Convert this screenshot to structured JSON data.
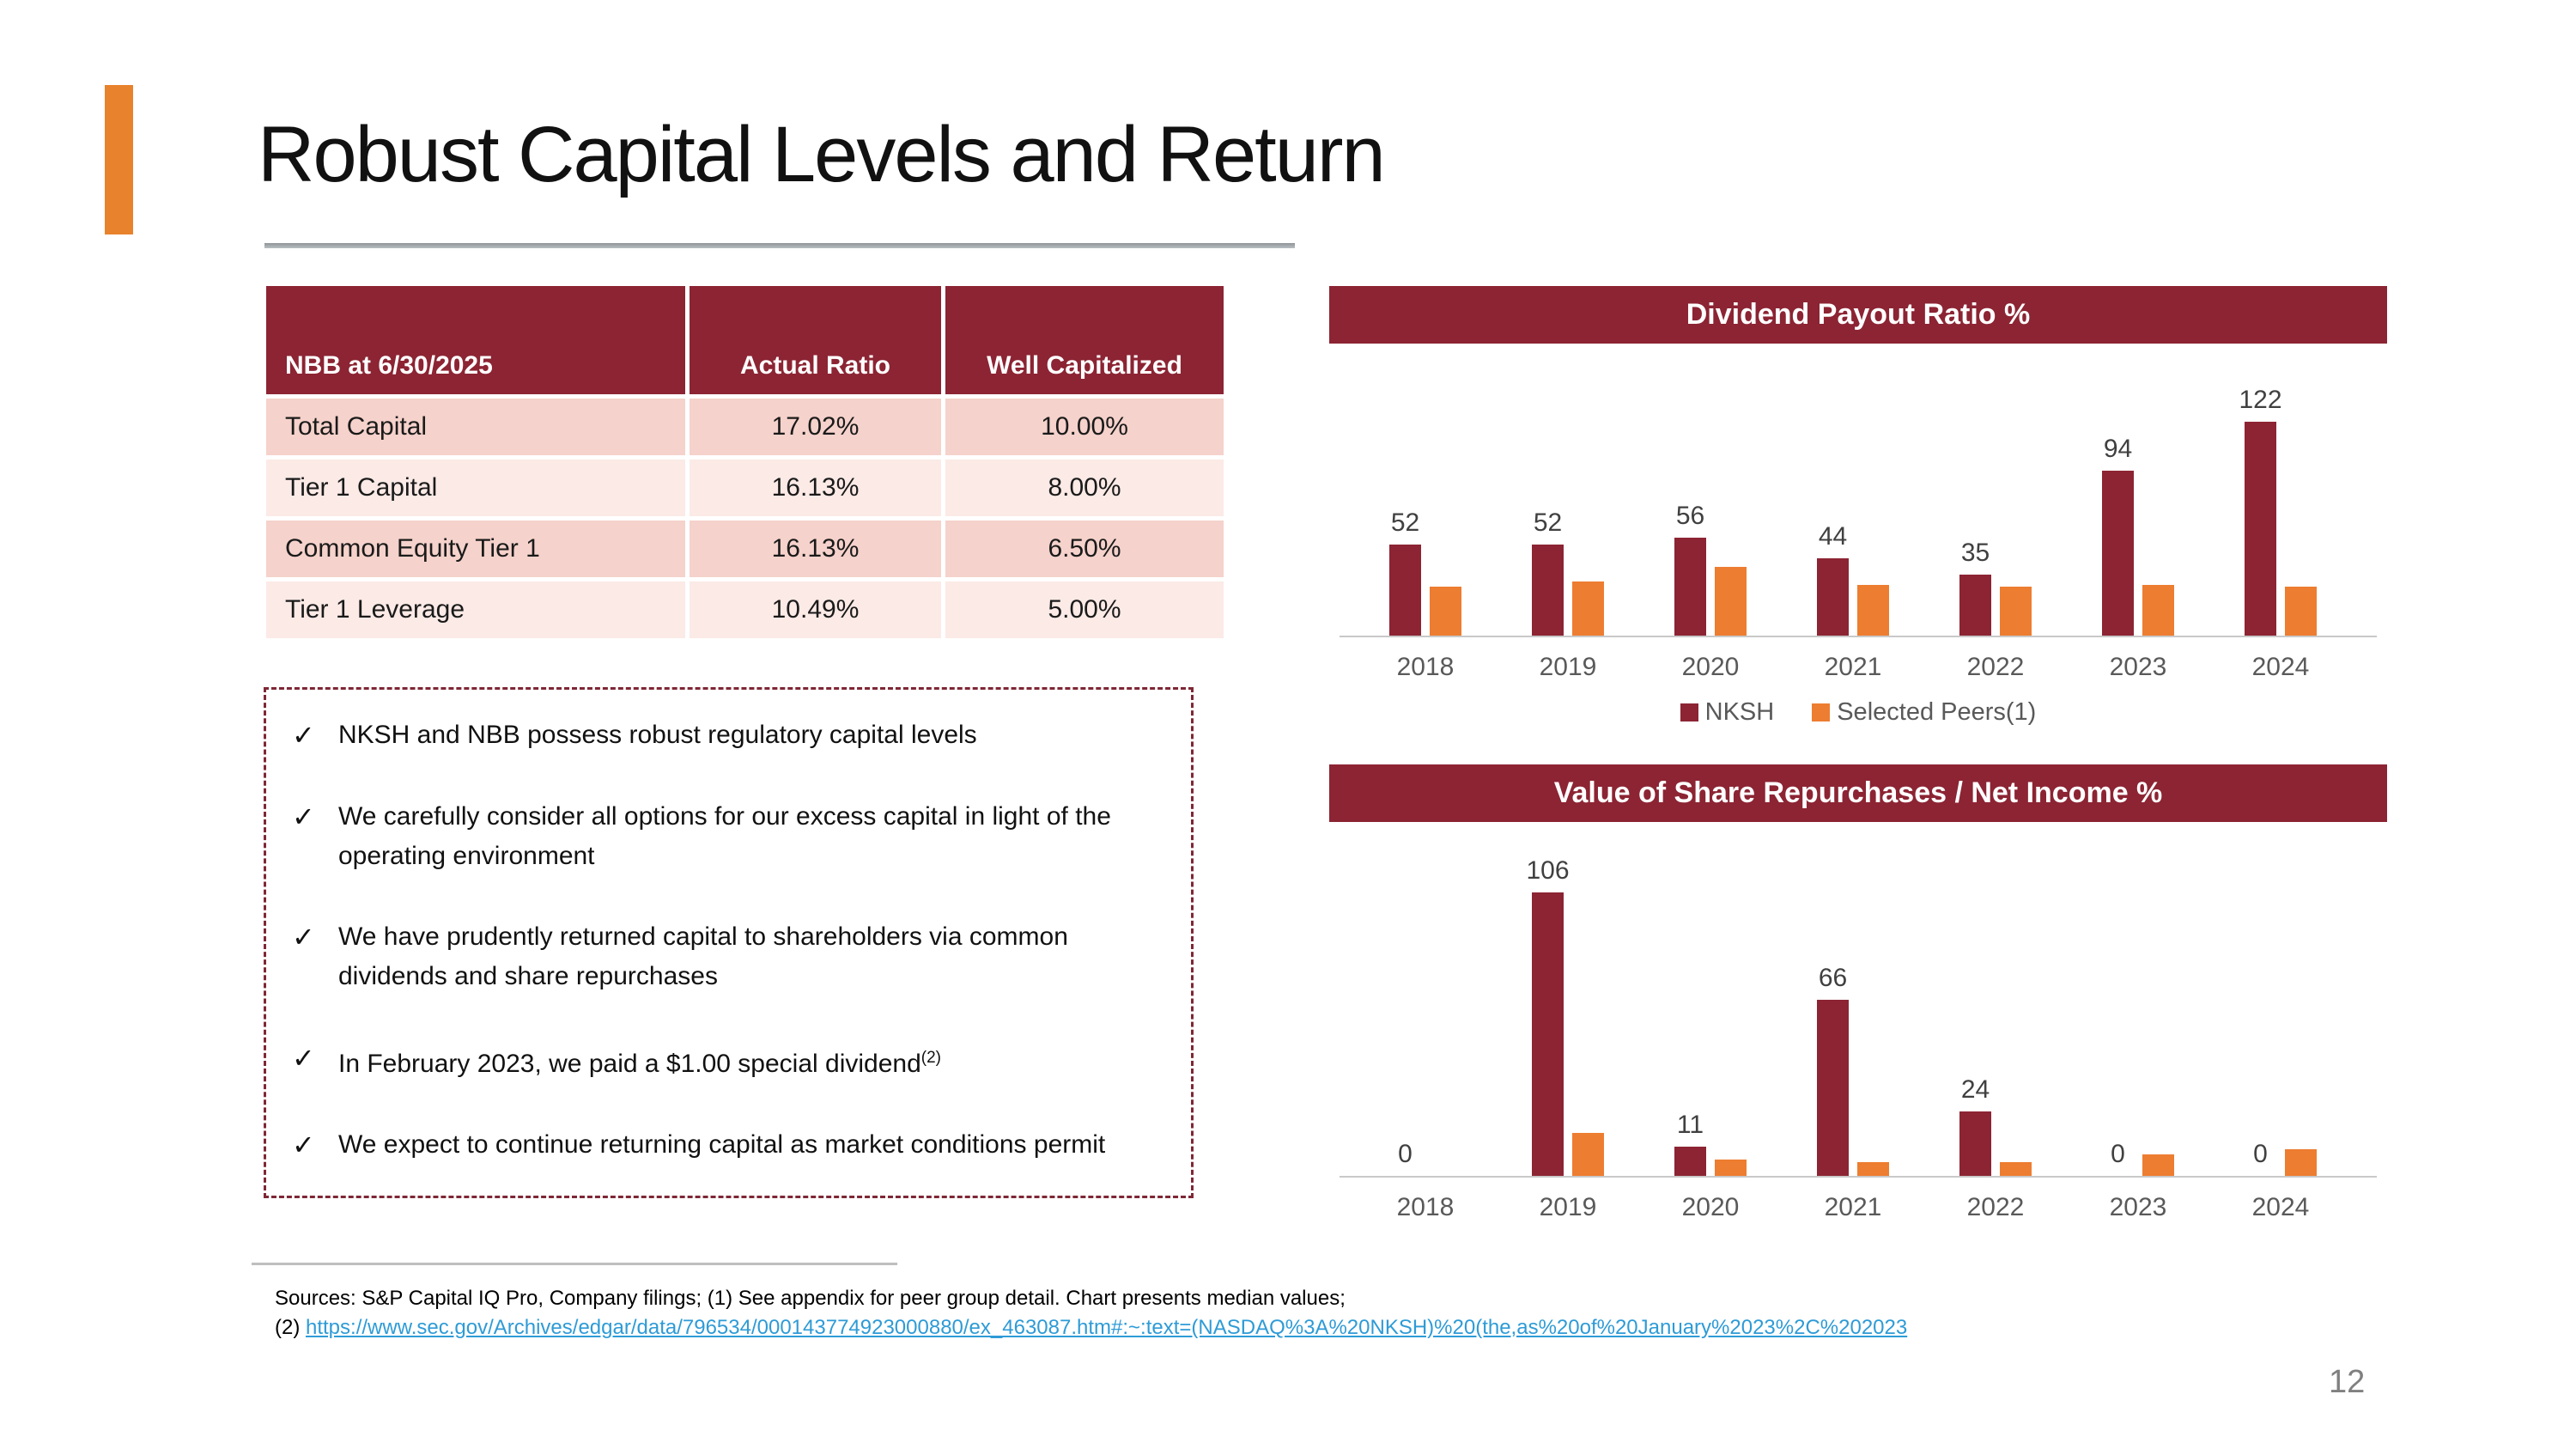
{
  "slide": {
    "title": "Robust Capital Levels and Return",
    "page_number": "12"
  },
  "table": {
    "header": [
      "NBB at 6/30/2025",
      "Actual Ratio",
      "Well Capitalized"
    ],
    "rows": [
      [
        "Total Capital",
        "17.02%",
        "10.00%"
      ],
      [
        "Tier 1 Capital",
        "16.13%",
        "8.00%"
      ],
      [
        "Common Equity Tier 1",
        "16.13%",
        "6.50%"
      ],
      [
        "Tier 1 Leverage",
        "10.49%",
        "5.00%"
      ]
    ]
  },
  "checklist": {
    "check_glyph": "✓",
    "items": [
      {
        "text": "NKSH and NBB possess robust regulatory capital levels",
        "sup": ""
      },
      {
        "text": "We carefully consider all options for our excess capital in light of the operating environment",
        "sup": ""
      },
      {
        "text": "We have prudently returned capital to shareholders via common dividends and share repurchases",
        "sup": ""
      },
      {
        "text": "In February 2023, we paid a $1.00 special dividend",
        "sup": "(2)"
      },
      {
        "text": "We expect to continue returning capital as market conditions permit",
        "sup": ""
      }
    ]
  },
  "chart_data": [
    {
      "type": "bar",
      "title": "Dividend Payout Ratio %",
      "categories": [
        "2018",
        "2019",
        "2020",
        "2021",
        "2022",
        "2023",
        "2024"
      ],
      "series": [
        {
          "name": "NKSH",
          "color": "#8C2433",
          "values": [
            52,
            52,
            56,
            44,
            35,
            94,
            122
          ],
          "data_labels": true
        },
        {
          "name": "Selected Peers(1)",
          "color": "#ED7D31",
          "values": [
            28,
            31,
            39,
            29,
            28,
            29,
            28
          ],
          "data_labels": false
        }
      ],
      "ylim": [
        0,
        135
      ],
      "grid": false,
      "legend": true,
      "legend_position": "bottom"
    },
    {
      "type": "bar",
      "title": "Value of Share Repurchases / Net Income %",
      "categories": [
        "2018",
        "2019",
        "2020",
        "2021",
        "2022",
        "2023",
        "2024"
      ],
      "series": [
        {
          "name": "NKSH",
          "color": "#8C2433",
          "values": [
            0,
            106,
            11,
            66,
            24,
            0,
            0
          ],
          "data_labels": true
        },
        {
          "name": "Selected Peers(1)",
          "color": "#ED7D31",
          "values": [
            0,
            16,
            6,
            5,
            5,
            8,
            10
          ],
          "data_labels": false
        }
      ],
      "ylim": [
        0,
        120
      ],
      "grid": false,
      "legend": false
    }
  ],
  "sources": {
    "line1": "Sources: S&P Capital IQ Pro, Company filings; (1) See appendix for peer group detail. Chart presents median values;",
    "line2_prefix": "(2) ",
    "link_text": "https://www.sec.gov/Archives/edgar/data/796534/000143774923000880/ex_463087.htm#:~:text=(NASDAQ%3A%20NKSH)%20(the,as%20of%20January%2023%2C%202023"
  },
  "colors": {
    "maroon": "#8C2433",
    "orange": "#ED7D31",
    "accent_bar": "#E8822C",
    "row_dark_pink": "#F5D2CB",
    "row_light_pink": "#FBEAE6",
    "link_blue": "#2E9BD6",
    "axis_gray": "#C9C9C9",
    "label_gray": "#595959"
  }
}
